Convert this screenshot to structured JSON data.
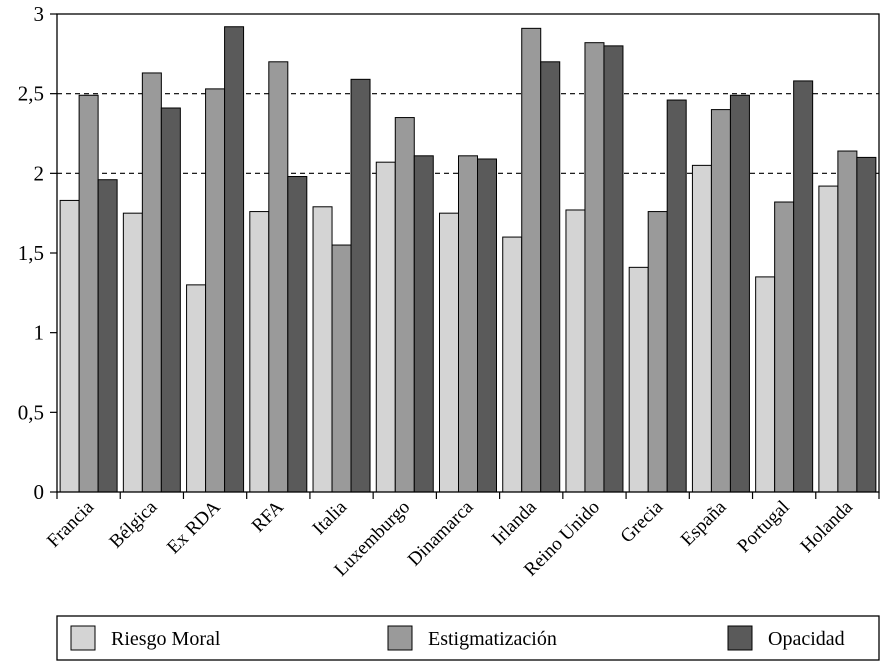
{
  "chart_data": {
    "type": "bar",
    "title": "",
    "xlabel": "",
    "ylabel": "",
    "ylim": [
      0,
      3
    ],
    "yticks": [
      {
        "value": 0,
        "label": "0"
      },
      {
        "value": 0.5,
        "label": "0,5"
      },
      {
        "value": 1,
        "label": "1"
      },
      {
        "value": 1.5,
        "label": "1,5"
      },
      {
        "value": 2,
        "label": "2"
      },
      {
        "value": 2.5,
        "label": "2,5"
      },
      {
        "value": 3,
        "label": "3"
      }
    ],
    "grid": {
      "y": true,
      "style": "dashed",
      "at": [
        2,
        2.5
      ]
    },
    "legend": "bottom",
    "categories": [
      "Francia",
      "Bélgica",
      "Ex RDA",
      "RFA",
      "Italia",
      "Luxemburgo",
      "Dinamarca",
      "Irlanda",
      "Reino Unido",
      "Grecia",
      "España",
      "Portugal",
      "Holanda"
    ],
    "series": [
      {
        "name": "Riesgo Moral",
        "color": "#d4d4d4",
        "values": [
          1.83,
          1.75,
          1.3,
          1.76,
          1.79,
          2.07,
          1.75,
          1.6,
          1.77,
          1.41,
          2.05,
          1.35,
          1.92
        ]
      },
      {
        "name": "Estigmatización",
        "color": "#9a9a9a",
        "values": [
          2.49,
          2.63,
          2.53,
          2.7,
          1.55,
          2.35,
          2.11,
          2.91,
          2.82,
          1.76,
          2.4,
          1.82,
          2.14
        ]
      },
      {
        "name": "Opacidad",
        "color": "#5a5a5a",
        "values": [
          1.96,
          2.41,
          2.92,
          1.98,
          2.59,
          2.11,
          2.09,
          2.7,
          2.8,
          2.46,
          2.49,
          2.58,
          2.1
        ]
      }
    ]
  }
}
